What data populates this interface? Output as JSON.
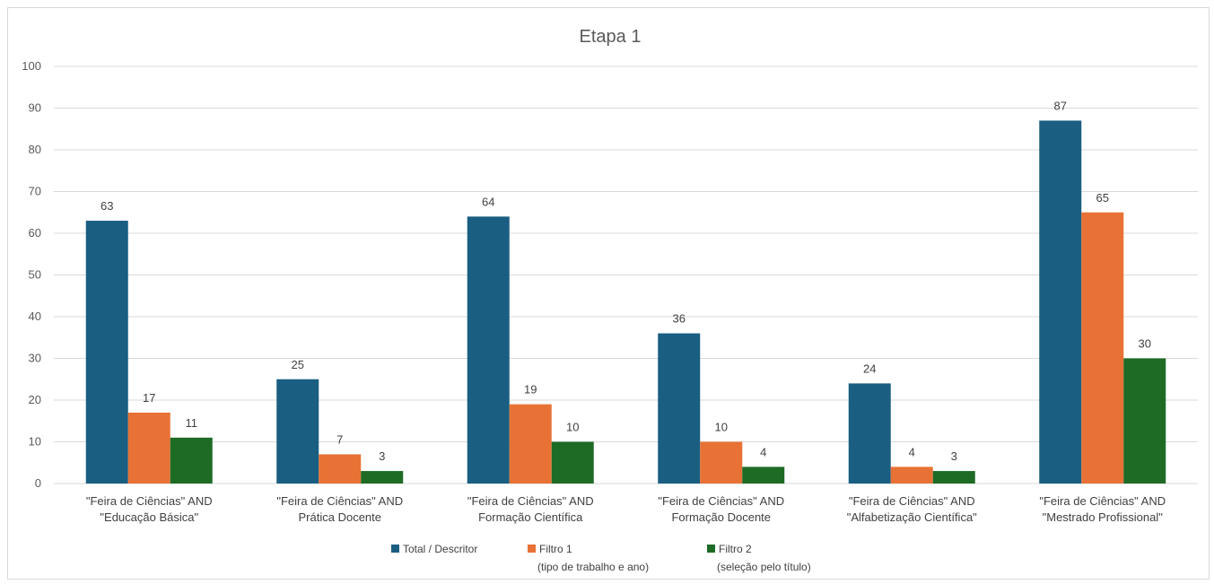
{
  "chart_data": {
    "type": "bar",
    "title": "Etapa 1",
    "categories": [
      [
        "\"Feira de Ciências\" AND",
        "\"Educação Básica\""
      ],
      [
        "\"Feira de Ciências\" AND",
        "Prática Docente"
      ],
      [
        "\"Feira de Ciências\" AND",
        "Formação Científica"
      ],
      [
        "\"Feira de Ciências\" AND",
        "Formação Docente"
      ],
      [
        "\"Feira de Ciências\" AND",
        "\"Alfabetização Científica\""
      ],
      [
        "\"Feira de Ciências\" AND",
        "\"Mestrado Profissional\""
      ]
    ],
    "series": [
      {
        "name": "Total / Descritor",
        "name_line2": "",
        "color": "#1a5e82",
        "values": [
          63,
          25,
          64,
          36,
          24,
          87
        ]
      },
      {
        "name": "Filtro 1",
        "name_line2": "(tipo de trabalho e ano)",
        "color": "#e87236",
        "values": [
          17,
          7,
          19,
          10,
          4,
          65
        ]
      },
      {
        "name": "Filtro 2",
        "name_line2": "(seleção pelo título)",
        "color": "#1e6b26",
        "values": [
          11,
          3,
          10,
          4,
          3,
          30
        ]
      }
    ],
    "ylim": [
      0,
      100
    ],
    "yticks": [
      0,
      10,
      20,
      30,
      40,
      50,
      60,
      70,
      80,
      90,
      100
    ],
    "grid": true,
    "legend_position": "bottom",
    "data_labels": true
  }
}
